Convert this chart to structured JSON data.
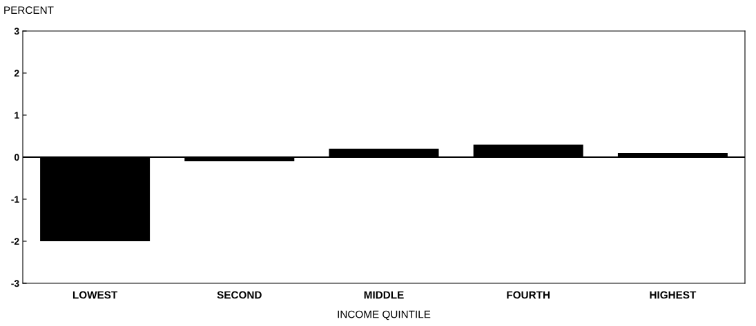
{
  "chart_data": {
    "type": "bar",
    "ylabel": "PERCENT",
    "xlabel": "INCOME QUINTILE",
    "categories": [
      "LOWEST",
      "SECOND",
      "MIDDLE",
      "FOURTH",
      "HIGHEST"
    ],
    "values": [
      -2.0,
      -0.1,
      0.2,
      0.3,
      0.1
    ],
    "color": "#000000",
    "ylim": [
      -3,
      3
    ],
    "yticks": [
      -3,
      -2,
      -1,
      0,
      1,
      2,
      3
    ],
    "ref_lines": [
      {
        "axis": "y",
        "value": 0,
        "color": "#000000"
      }
    ],
    "grid": false,
    "legend": false
  }
}
